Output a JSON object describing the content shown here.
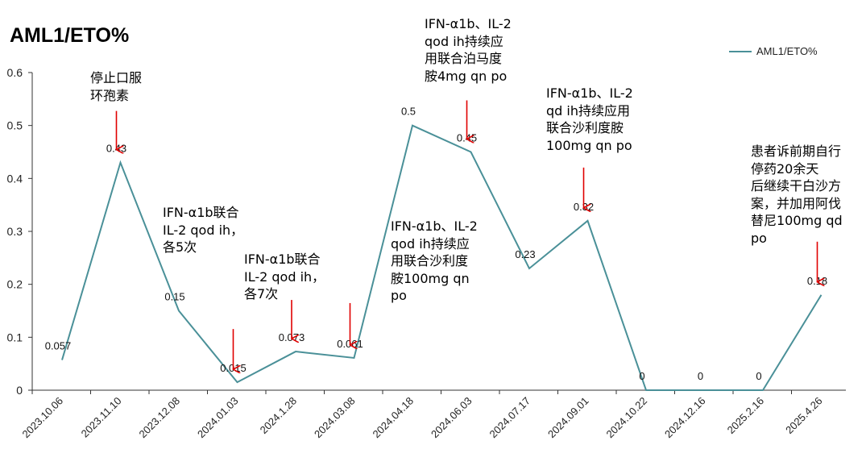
{
  "chart_data": {
    "type": "line",
    "title": "AML1/ETO%",
    "legend_position": "top-right",
    "grid": false,
    "ylim": [
      0,
      0.6
    ],
    "yticks": [
      "0",
      "0.1",
      "0.2",
      "0.3",
      "0.4",
      "0.5",
      "0.6"
    ],
    "categories": [
      "2023.10.06",
      "2023.11.10",
      "2023.12.08",
      "2024.01.03",
      "2024.1.28",
      "2024.03.08",
      "2024.04.18",
      "2024.06.03",
      "2024.07.17",
      "2024.09.01",
      "2024.10.22",
      "2024.12.16",
      "2025.2.16",
      "2025.4.26"
    ],
    "series": [
      {
        "name": "AML1/ETO%",
        "color": "#4a9098",
        "values": [
          0.057,
          0.43,
          0.15,
          0.015,
          0.073,
          0.061,
          0.5,
          0.45,
          0.23,
          0.32,
          0,
          0,
          0,
          0.18
        ],
        "labels": [
          "0.057",
          "0.43",
          "0.15",
          "0.015",
          "0.073",
          "0.061",
          "0.5",
          "0.45",
          "0.23",
          "0.32",
          "0",
          "0",
          "0",
          "0.18"
        ]
      }
    ],
    "annotations": [
      {
        "text": "停止口服\n环孢素",
        "arrow_at": 1
      },
      {
        "text": "IFN-α1b联合\nIL-2 qod ih，\n各5次"
      },
      {
        "text": "IFN-α1b联合\nIL-2 qod ih，\n各7次",
        "arrow_at": 4
      },
      {
        "text": "IFN-α1b、IL-2\nqod ih持续应\n用联合泊马度\n胺4mg qn po",
        "arrow_at": 7
      },
      {
        "text": "IFN-α1b、IL-2\nqod ih持续应\n用联合沙利度\n胺100mg qn\npo"
      },
      {
        "text": "IFN-α1b、IL-2\nqd ih持续应用\n联合沙利度胺\n100mg qn po",
        "arrow_at": 9
      },
      {
        "text": "患者诉前期自行\n停药20余天\n后继续干白沙方\n案，并加用阿伐\n替尼100mg qd\npo",
        "arrow_at": 13
      }
    ],
    "extra_arrows_at": [
      3,
      5
    ],
    "arrow_color": "#e00000"
  }
}
